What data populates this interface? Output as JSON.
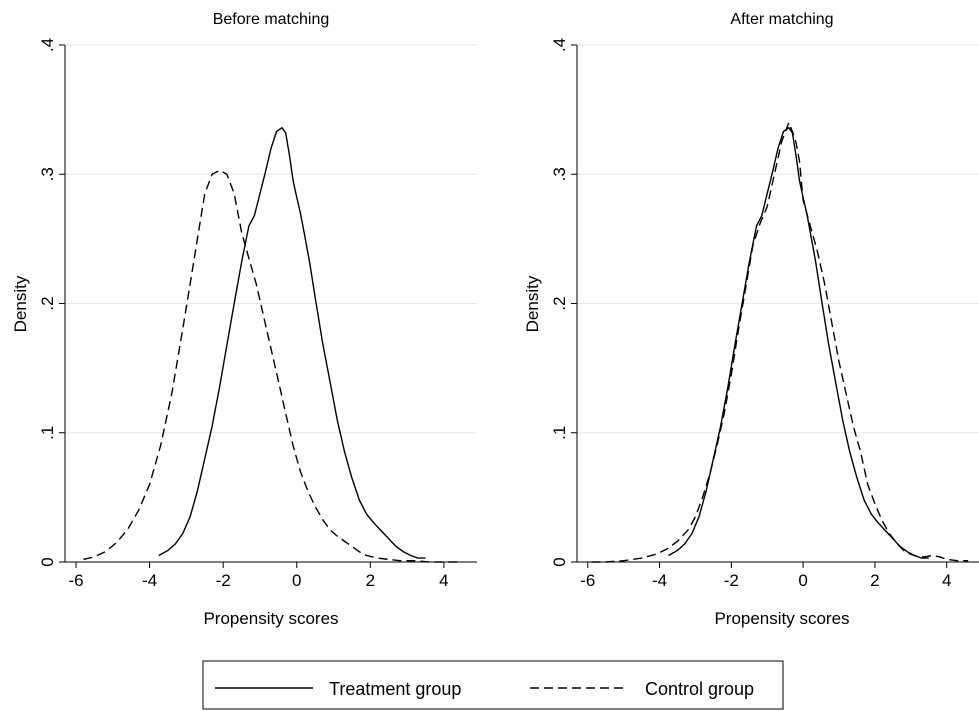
{
  "legend": {
    "items": [
      {
        "label": "Treatment group",
        "style": "solid"
      },
      {
        "label": "Control group",
        "style": "dashed"
      }
    ]
  },
  "chart_data": [
    {
      "type": "line",
      "title": "Before matching",
      "xlabel": "Propensity scores",
      "ylabel": "Density",
      "xlim": [
        -6.3,
        4.9
      ],
      "ylim": [
        0,
        0.4
      ],
      "xticks": [
        -6,
        -4,
        -2,
        0,
        2,
        4
      ],
      "xtick_labels": [
        "-6",
        "-4",
        "-2",
        "0",
        "2",
        "4"
      ],
      "yticks": [
        0,
        0.1,
        0.2,
        0.3,
        0.4
      ],
      "ytick_labels": [
        "0",
        ".1",
        ".2",
        ".3",
        ".4"
      ],
      "grid": true,
      "legend_position": "bottom",
      "series": [
        {
          "name": "Treatment group",
          "style": "solid",
          "x": [
            -3.75,
            -3.5,
            -3.3,
            -3.1,
            -2.9,
            -2.7,
            -2.5,
            -2.3,
            -2.1,
            -1.9,
            -1.7,
            -1.5,
            -1.3,
            -1.15,
            -1.0,
            -0.85,
            -0.7,
            -0.55,
            -0.4,
            -0.3,
            -0.2,
            -0.1,
            0.0,
            0.1,
            0.2,
            0.35,
            0.5,
            0.7,
            0.9,
            1.1,
            1.3,
            1.5,
            1.7,
            1.9,
            2.1,
            2.3,
            2.5,
            2.7,
            2.9,
            3.1,
            3.3,
            3.5
          ],
          "y": [
            0.005,
            0.009,
            0.014,
            0.022,
            0.035,
            0.055,
            0.08,
            0.105,
            0.135,
            0.168,
            0.2,
            0.232,
            0.26,
            0.268,
            0.285,
            0.302,
            0.32,
            0.333,
            0.336,
            0.332,
            0.315,
            0.295,
            0.282,
            0.27,
            0.255,
            0.232,
            0.205,
            0.17,
            0.14,
            0.11,
            0.085,
            0.065,
            0.048,
            0.037,
            0.03,
            0.024,
            0.018,
            0.012,
            0.008,
            0.005,
            0.003,
            0.003
          ]
        },
        {
          "name": "Control group",
          "style": "dashed",
          "x": [
            -5.8,
            -5.5,
            -5.2,
            -4.9,
            -4.6,
            -4.3,
            -4.0,
            -3.7,
            -3.4,
            -3.1,
            -2.9,
            -2.7,
            -2.5,
            -2.3,
            -2.1,
            -1.9,
            -1.7,
            -1.5,
            -1.3,
            -1.1,
            -0.9,
            -0.7,
            -0.5,
            -0.3,
            -0.1,
            0.1,
            0.3,
            0.5,
            0.7,
            0.9,
            1.1,
            1.3,
            1.5,
            1.7,
            1.9,
            2.2,
            2.5,
            2.8,
            3.2,
            3.6,
            4.0,
            4.5
          ],
          "y": [
            0.002,
            0.004,
            0.008,
            0.015,
            0.025,
            0.04,
            0.06,
            0.09,
            0.13,
            0.18,
            0.215,
            0.25,
            0.285,
            0.3,
            0.303,
            0.3,
            0.285,
            0.255,
            0.235,
            0.215,
            0.19,
            0.165,
            0.14,
            0.115,
            0.09,
            0.07,
            0.055,
            0.043,
            0.033,
            0.025,
            0.02,
            0.016,
            0.012,
            0.008,
            0.005,
            0.003,
            0.002,
            0.001,
            0.001,
            0.0,
            0.0,
            0.0
          ]
        }
      ]
    },
    {
      "type": "line",
      "title": "After matching",
      "xlabel": "Propensity scores",
      "ylabel": "Density",
      "xlim": [
        -6.3,
        4.9
      ],
      "ylim": [
        0,
        0.4
      ],
      "xticks": [
        -6,
        -4,
        -2,
        0,
        2,
        4
      ],
      "xtick_labels": [
        "-6",
        "-4",
        "-2",
        "0",
        "2",
        "4"
      ],
      "yticks": [
        0,
        0.1,
        0.2,
        0.3,
        0.4
      ],
      "ytick_labels": [
        "0",
        ".1",
        ".2",
        ".3",
        ".4"
      ],
      "grid": true,
      "legend_position": "bottom",
      "series": [
        {
          "name": "Treatment group",
          "style": "solid",
          "x": [
            -3.75,
            -3.5,
            -3.3,
            -3.1,
            -2.9,
            -2.7,
            -2.5,
            -2.3,
            -2.1,
            -1.9,
            -1.7,
            -1.5,
            -1.3,
            -1.15,
            -1.0,
            -0.85,
            -0.7,
            -0.55,
            -0.4,
            -0.3,
            -0.2,
            -0.1,
            0.0,
            0.1,
            0.2,
            0.35,
            0.5,
            0.7,
            0.9,
            1.1,
            1.3,
            1.5,
            1.7,
            1.9,
            2.1,
            2.3,
            2.5,
            2.7,
            2.9,
            3.1,
            3.3,
            3.5
          ],
          "y": [
            0.005,
            0.009,
            0.014,
            0.022,
            0.035,
            0.055,
            0.08,
            0.105,
            0.135,
            0.168,
            0.2,
            0.232,
            0.26,
            0.268,
            0.285,
            0.302,
            0.32,
            0.333,
            0.336,
            0.332,
            0.315,
            0.295,
            0.282,
            0.27,
            0.255,
            0.232,
            0.205,
            0.17,
            0.14,
            0.11,
            0.085,
            0.065,
            0.048,
            0.037,
            0.03,
            0.024,
            0.018,
            0.012,
            0.008,
            0.005,
            0.003,
            0.003
          ]
        },
        {
          "name": "Control group",
          "style": "dashed",
          "x": [
            -5.9,
            -5.5,
            -5.0,
            -4.5,
            -4.1,
            -3.8,
            -3.5,
            -3.2,
            -3.0,
            -2.8,
            -2.6,
            -2.4,
            -2.2,
            -2.0,
            -1.8,
            -1.6,
            -1.4,
            -1.2,
            -1.0,
            -0.8,
            -0.6,
            -0.4,
            -0.3,
            -0.2,
            -0.1,
            0.0,
            0.2,
            0.4,
            0.6,
            0.8,
            1.0,
            1.2,
            1.4,
            1.6,
            1.8,
            2.0,
            2.2,
            2.4,
            2.6,
            2.8,
            3.0,
            3.2,
            3.4,
            3.6,
            3.8,
            4.0,
            4.3,
            4.6
          ],
          "y": [
            0.0,
            0.0,
            0.001,
            0.003,
            0.006,
            0.01,
            0.016,
            0.025,
            0.035,
            0.05,
            0.068,
            0.09,
            0.115,
            0.145,
            0.18,
            0.212,
            0.245,
            0.262,
            0.275,
            0.3,
            0.325,
            0.34,
            0.333,
            0.325,
            0.31,
            0.28,
            0.26,
            0.24,
            0.215,
            0.185,
            0.155,
            0.13,
            0.105,
            0.085,
            0.06,
            0.045,
            0.032,
            0.022,
            0.015,
            0.009,
            0.006,
            0.004,
            0.004,
            0.005,
            0.004,
            0.002,
            0.001,
            0.001
          ]
        }
      ]
    }
  ]
}
